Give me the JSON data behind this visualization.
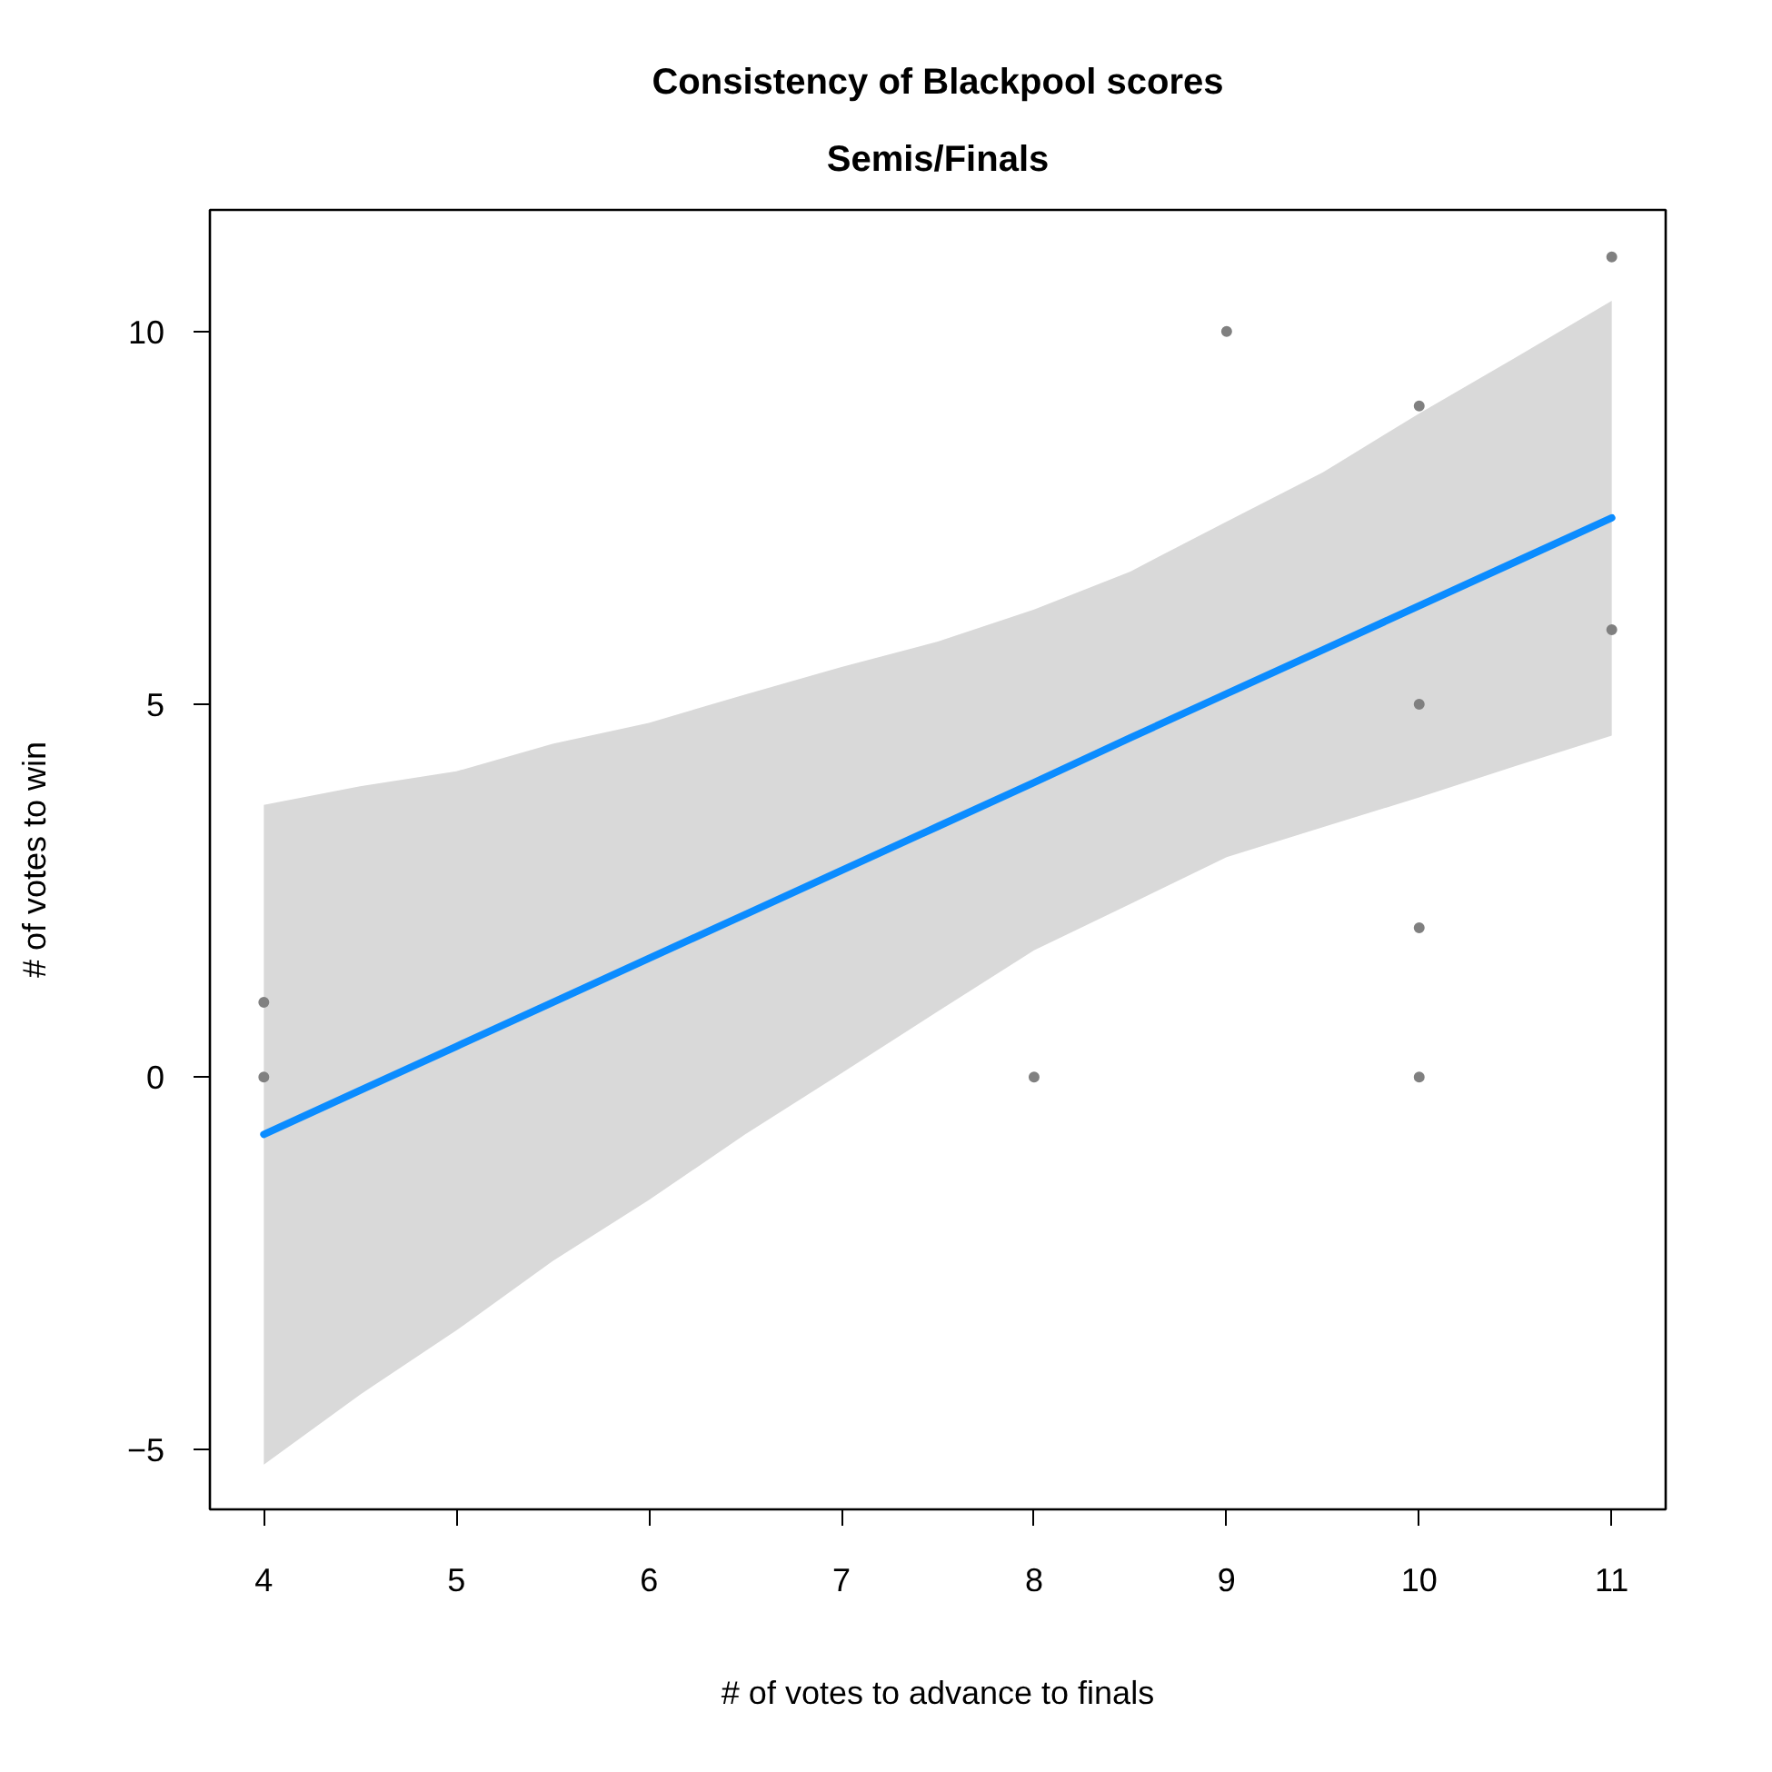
{
  "chart_data": {
    "type": "scatter",
    "title": "Consistency of Blackpool scores",
    "subtitle": "Semis/Finals",
    "xlabel": "# of votes to advance to finals",
    "ylabel": "# of votes to win",
    "xlim": [
      3.72,
      11.28
    ],
    "ylim": [
      -5.8,
      11.63
    ],
    "xticks": [
      4,
      5,
      6,
      7,
      8,
      9,
      10,
      11
    ],
    "yticks": [
      {
        "value": -5,
        "label": "−5"
      },
      0,
      5,
      10
    ],
    "grid": false,
    "series": [
      {
        "type": "line",
        "color": "#0b8cff",
        "line_style": "solid",
        "x": [
          4,
          4.5,
          5,
          5.5,
          6,
          6.5,
          7,
          7.5,
          8,
          8.5,
          9,
          9.5,
          10,
          10.5,
          11
        ],
        "values": [
          -0.77,
          -0.18,
          0.41,
          1.0,
          1.59,
          2.18,
          2.77,
          3.36,
          3.95,
          4.55,
          5.14,
          5.73,
          6.32,
          6.91,
          7.5
        ],
        "lower": [
          -5.2,
          -4.26,
          -3.4,
          -2.47,
          -1.65,
          -0.77,
          0.05,
          0.88,
          1.7,
          2.32,
          2.95,
          3.35,
          3.75,
          4.17,
          4.58
        ],
        "upper": [
          3.65,
          3.9,
          4.1,
          4.47,
          4.75,
          5.13,
          5.5,
          5.84,
          6.27,
          6.78,
          7.45,
          8.11,
          8.9,
          9.65,
          10.41
        ]
      },
      {
        "color": "#808080",
        "marker": "circle",
        "x": [
          4,
          4,
          8,
          9,
          10,
          10,
          10,
          10,
          11,
          11
        ],
        "values": [
          1,
          0,
          0,
          10,
          9,
          5,
          2,
          0,
          11,
          6
        ]
      }
    ]
  }
}
